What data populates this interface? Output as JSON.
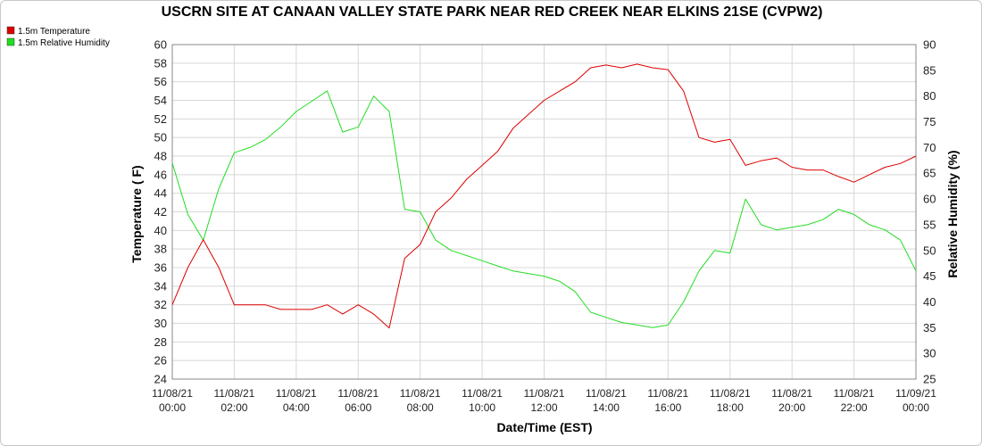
{
  "chart_data": {
    "type": "line",
    "title": "USCRN SITE AT CANAAN VALLEY STATE PARK NEAR RED CREEK NEAR ELKINS 21SE (CVPW2)",
    "xlabel": "Date/Time (EST)",
    "ylabel_left": "Temperature ( F)",
    "ylabel_right": "Relative Humidity (%)",
    "ylim_left": [
      24,
      60
    ],
    "ylim_right": [
      25,
      90
    ],
    "grid": true,
    "legend_position": "top-left",
    "y_ticks_left": [
      "24",
      "26",
      "28",
      "30",
      "32",
      "34",
      "36",
      "38",
      "40",
      "42",
      "44",
      "46",
      "48",
      "50",
      "52",
      "54",
      "56",
      "58",
      "60"
    ],
    "y_ticks_right": [
      "25",
      "30",
      "35",
      "40",
      "45",
      "50",
      "55",
      "60",
      "65",
      "70",
      "75",
      "80",
      "85",
      "90"
    ],
    "x_ticks": [
      {
        "date": "11/08/21",
        "time": "00:00"
      },
      {
        "date": "11/08/21",
        "time": "02:00"
      },
      {
        "date": "11/08/21",
        "time": "04:00"
      },
      {
        "date": "11/08/21",
        "time": "06:00"
      },
      {
        "date": "11/08/21",
        "time": "08:00"
      },
      {
        "date": "11/08/21",
        "time": "10:00"
      },
      {
        "date": "11/08/21",
        "time": "12:00"
      },
      {
        "date": "11/08/21",
        "time": "14:00"
      },
      {
        "date": "11/08/21",
        "time": "16:00"
      },
      {
        "date": "11/08/21",
        "time": "18:00"
      },
      {
        "date": "11/08/21",
        "time": "20:00"
      },
      {
        "date": "11/08/21",
        "time": "22:00"
      },
      {
        "date": "11/09/21",
        "time": "00:00"
      }
    ],
    "x": [
      "00:00",
      "00:30",
      "01:00",
      "01:30",
      "02:00",
      "02:30",
      "03:00",
      "03:30",
      "04:00",
      "04:30",
      "05:00",
      "05:30",
      "06:00",
      "06:30",
      "07:00",
      "07:30",
      "08:00",
      "08:30",
      "09:00",
      "09:30",
      "10:00",
      "10:30",
      "11:00",
      "11:30",
      "12:00",
      "12:30",
      "13:00",
      "13:30",
      "14:00",
      "14:30",
      "15:00",
      "15:30",
      "16:00",
      "16:30",
      "17:00",
      "17:30",
      "18:00",
      "18:30",
      "19:00",
      "19:30",
      "20:00",
      "20:30",
      "21:00",
      "21:30",
      "22:00",
      "22:30",
      "23:00",
      "23:30",
      "24:00"
    ],
    "series": [
      {
        "name": "1.5m Temperature",
        "color": "#dd0000",
        "axis": "left",
        "values": [
          32.0,
          36.0,
          39.0,
          36.0,
          32.0,
          32.0,
          32.0,
          31.5,
          31.5,
          31.5,
          32.0,
          31.0,
          32.0,
          31.0,
          29.5,
          37.0,
          38.5,
          42.0,
          43.5,
          45.5,
          47.0,
          48.5,
          51.0,
          52.5,
          54.0,
          55.0,
          56.0,
          57.5,
          57.8,
          57.5,
          57.9,
          57.5,
          57.3,
          55.0,
          50.0,
          49.5,
          49.8,
          47.0,
          47.5,
          47.8,
          46.8,
          46.5,
          46.5,
          45.8,
          45.2,
          46.0,
          46.8,
          47.2,
          48.0
        ]
      },
      {
        "name": "1.5m Relative Humidity",
        "color": "#22dd22",
        "axis": "right",
        "values": [
          67.0,
          57.0,
          52.0,
          62.0,
          69.0,
          70.0,
          71.5,
          74.0,
          77.0,
          79.0,
          81.0,
          73.0,
          74.0,
          80.0,
          77.0,
          58.0,
          57.5,
          52.0,
          50.0,
          49.0,
          48.0,
          47.0,
          46.0,
          45.5,
          45.0,
          44.0,
          42.0,
          38.0,
          37.0,
          36.0,
          35.5,
          35.0,
          35.5,
          40.0,
          46.0,
          50.0,
          49.5,
          60.0,
          55.0,
          54.0,
          54.5,
          55.0,
          56.0,
          58.0,
          57.0,
          55.0,
          54.0,
          52.0,
          46.0
        ]
      }
    ]
  }
}
